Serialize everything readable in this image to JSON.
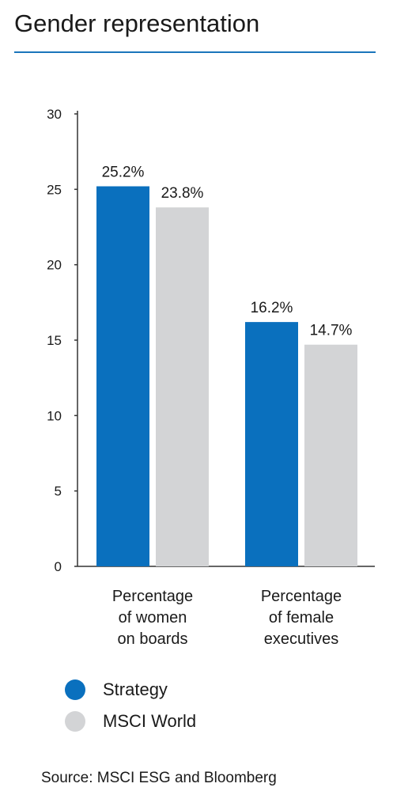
{
  "title": "Gender representation",
  "source": "Source: MSCI ESG and Bloomberg",
  "colors": {
    "accent": "#1b75bb",
    "strategy": "#0a70be",
    "msci": "#d3d4d6"
  },
  "chart_data": {
    "type": "bar",
    "title": "",
    "xlabel": "",
    "ylabel": "",
    "ylim": [
      0,
      30
    ],
    "yticks": [
      0,
      5,
      10,
      15,
      20,
      25,
      30
    ],
    "grid": false,
    "legend_position": "bottom-left",
    "categories": [
      [
        "Percentage",
        "of women",
        "on boards"
      ],
      [
        "Percentage",
        "of female",
        "executives"
      ]
    ],
    "series": [
      {
        "name": "Strategy",
        "color": "#0a70be",
        "values": [
          25.2,
          16.2
        ],
        "labels": [
          "25.2%",
          "16.2%"
        ]
      },
      {
        "name": "MSCI World",
        "color": "#d3d4d6",
        "values": [
          23.8,
          14.7
        ],
        "labels": [
          "23.8%",
          "14.7%"
        ]
      }
    ]
  }
}
